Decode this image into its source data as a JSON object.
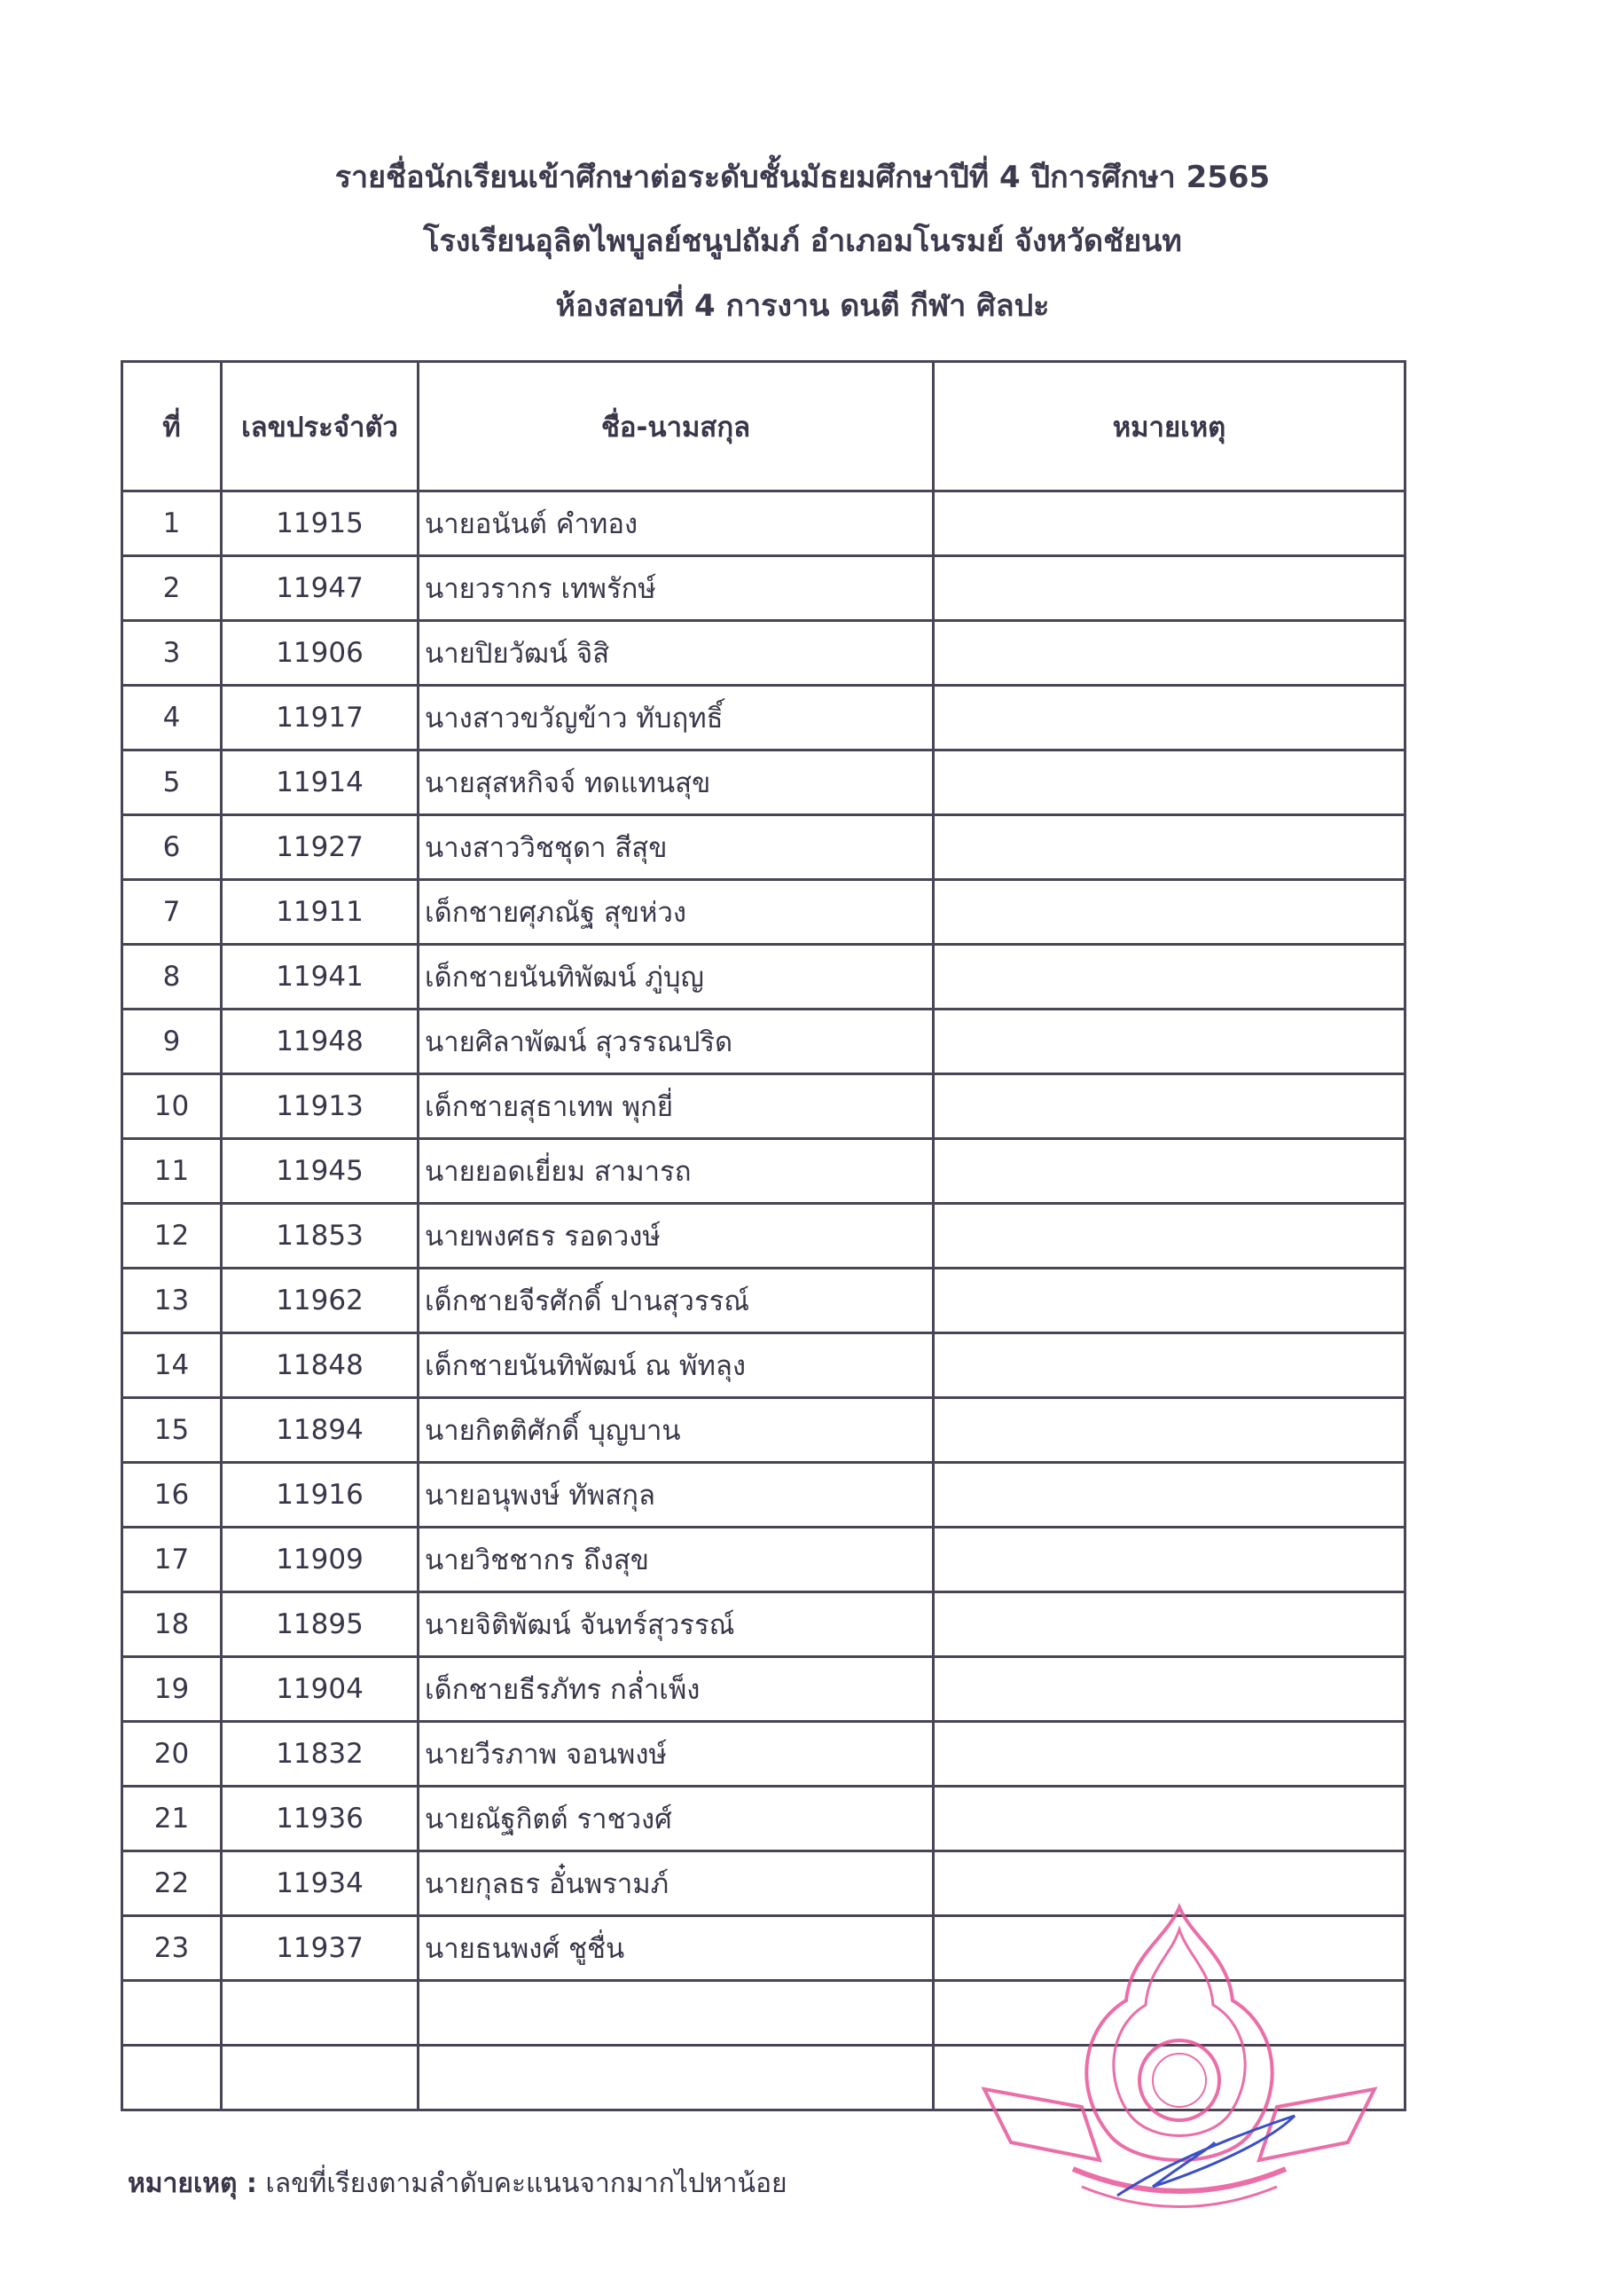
{
  "header": {
    "line1": "รายชื่อนักเรียนเข้าศึกษาต่อระดับชั้นมัธยมศึกษาปีที่ 4 ปีการศึกษา 2565",
    "line2": "โรงเรียนอุลิตไพบูลย์ชนูปถัมภ์ อำเภอมโนรมย์ จังหวัดชัยนท",
    "line3": "ห้องสอบที่ 4 การงาน ดนตี กีฬา ศิลปะ"
  },
  "table": {
    "columns": [
      "ที่",
      "เลขประจำตัว",
      "ชื่อ-นามสกุล",
      "หมายเหตุ"
    ],
    "rows": [
      {
        "no": "1",
        "id": "11915",
        "name": "นายอนันต์  คำทอง",
        "note": ""
      },
      {
        "no": "2",
        "id": "11947",
        "name": "นายวรากร  เทพรักษ์",
        "note": ""
      },
      {
        "no": "3",
        "id": "11906",
        "name": "นายปิยวัฒน์  จิสิ",
        "note": ""
      },
      {
        "no": "4",
        "id": "11917",
        "name": "นางสาวขวัญข้าว  ทับฤทธิ์",
        "note": ""
      },
      {
        "no": "5",
        "id": "11914",
        "name": "นายสุสหกิจจ์  ทดแทนสุข",
        "note": ""
      },
      {
        "no": "6",
        "id": "11927",
        "name": "นางสาววิชชุดา  สีสุข",
        "note": ""
      },
      {
        "no": "7",
        "id": "11911",
        "name": "เด็กชายศุภณัฐ  สุขห่วง",
        "note": ""
      },
      {
        "no": "8",
        "id": "11941",
        "name": "เด็กชายนันทิพัฒน์  ภู่บุญ",
        "note": ""
      },
      {
        "no": "9",
        "id": "11948",
        "name": "นายศิลาพัฒน์  สุวรรณปริด",
        "note": ""
      },
      {
        "no": "10",
        "id": "11913",
        "name": "เด็กชายสุธาเทพ  พุกยี่",
        "note": ""
      },
      {
        "no": "11",
        "id": "11945",
        "name": "นายยอดเยี่ยม  สามารถ",
        "note": ""
      },
      {
        "no": "12",
        "id": "11853",
        "name": "นายพงศธร  รอดวงษ์",
        "note": ""
      },
      {
        "no": "13",
        "id": "11962",
        "name": "เด็กชายจีรศักดิ์  ปานสุวรรณ์",
        "note": ""
      },
      {
        "no": "14",
        "id": "11848",
        "name": "เด็กชายนันทิพัฒน์  ณ  พัทลุง",
        "note": ""
      },
      {
        "no": "15",
        "id": "11894",
        "name": "นายกิตติศักดิ์  บุญบาน",
        "note": ""
      },
      {
        "no": "16",
        "id": "11916",
        "name": "นายอนุพงษ์  ทัพสกุล",
        "note": ""
      },
      {
        "no": "17",
        "id": "11909",
        "name": "นายวิชชากร  ถึงสุข",
        "note": ""
      },
      {
        "no": "18",
        "id": "11895",
        "name": "นายจิติพัฒน์  จันทร์สุวรรณ์",
        "note": ""
      },
      {
        "no": "19",
        "id": "11904",
        "name": "เด็กชายธีรภัทร  กล่ำเพ็ง",
        "note": ""
      },
      {
        "no": "20",
        "id": "11832",
        "name": "นายวีรภาพ  จอนพงษ์",
        "note": ""
      },
      {
        "no": "21",
        "id": "11936",
        "name": "นายณัฐกิตต์  ราชวงศ์",
        "note": ""
      },
      {
        "no": "22",
        "id": "11934",
        "name": "นายกุลธร  อั๋นพรามภ์",
        "note": ""
      },
      {
        "no": "23",
        "id": "11937",
        "name": "นายธนพงศ์  ชูชื่น",
        "note": ""
      },
      {
        "no": "",
        "id": "",
        "name": "",
        "note": ""
      },
      {
        "no": "",
        "id": "",
        "name": "",
        "note": ""
      }
    ]
  },
  "footer": {
    "label": "หมายเหตุ :",
    "text": " เลขที่เรียงตามลำดับคะแนนจากมากไปหาน้อย"
  },
  "seal": {
    "color": "#e8559a",
    "signature_color": "#3a4fc8"
  }
}
